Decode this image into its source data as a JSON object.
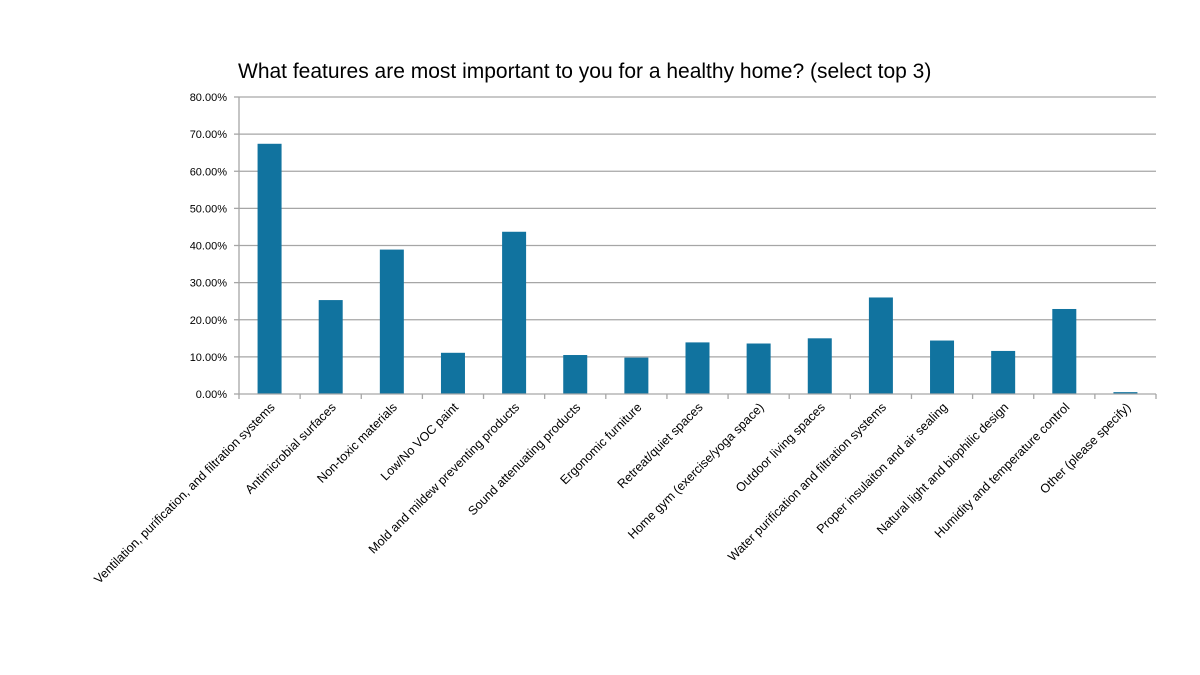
{
  "chart_data": {
    "type": "bar",
    "title": "What features are most important to you for a healthy home? (select top 3)",
    "xlabel": "",
    "ylabel": "",
    "ylim": [
      0,
      0.8
    ],
    "yticks": [
      "0.00%",
      "10.00%",
      "20.00%",
      "30.00%",
      "40.00%",
      "50.00%",
      "60.00%",
      "70.00%",
      "80.00%"
    ],
    "grid": true,
    "legend": null,
    "bar_color": "#11739F",
    "categories": [
      "Ventilation, purification, and filtration systems",
      "Antimicrobial surfaces",
      "Non-toxic materials",
      "Low/No VOC paint",
      "Mold and mildew preventing products",
      "Sound attenuating products",
      "Ergonomic furniture",
      "Retreat/quiet spaces",
      "Home gym (exercise/yoga space)",
      "Outdoor living spaces",
      "Water purification and filtration systems",
      "Proper insulaiton and air sealing",
      "Natural light and biophilic design",
      "Humidity and temperature control",
      "Other (please specify)"
    ],
    "values": [
      0.674,
      0.253,
      0.389,
      0.111,
      0.437,
      0.105,
      0.098,
      0.139,
      0.136,
      0.15,
      0.26,
      0.144,
      0.116,
      0.229,
      0.005
    ]
  }
}
